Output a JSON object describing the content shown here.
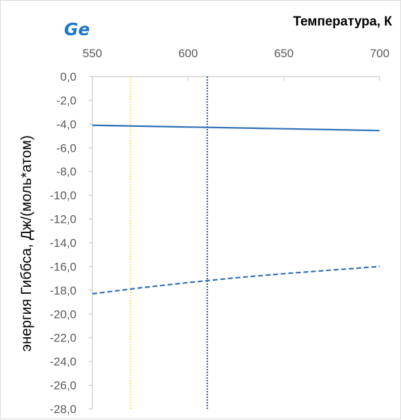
{
  "chart_data": {
    "type": "line",
    "title": "Ge",
    "xlabel": "Температура, К",
    "ylabel": "энергия Гиббса, Дж/(моль*атом)",
    "xlim": [
      550,
      700
    ],
    "ylim": [
      -28,
      0
    ],
    "x_ticks": [
      550,
      600,
      650,
      700
    ],
    "x_tick_labels": [
      "550",
      "600",
      "650",
      "700"
    ],
    "y_ticks": [
      0,
      -2,
      -4,
      -6,
      -8,
      -10,
      -12,
      -14,
      -16,
      -18,
      -20,
      -22,
      -24,
      -26,
      -28
    ],
    "y_tick_labels": [
      "0,0",
      "-2,0",
      "-4,0",
      "-6,0",
      "-8,0",
      "-10,0",
      "-12,0",
      "-14,0",
      "-16,0",
      "-18,0",
      "-20,0",
      "-22,0",
      "-24,0",
      "-26,0",
      "-28,0"
    ],
    "x_axis_position": "top",
    "grid": false,
    "series": [
      {
        "style": "solid",
        "x": [
          550,
          600,
          650,
          700
        ],
        "y": [
          -4.1,
          -4.25,
          -4.4,
          -4.55
        ]
      },
      {
        "style": "dashed",
        "x": [
          550,
          575,
          600,
          625,
          650,
          675,
          700
        ],
        "y": [
          -18.3,
          -17.8,
          -17.35,
          -16.95,
          -16.6,
          -16.3,
          -16.0
        ]
      }
    ],
    "vlines": [
      {
        "x": 570,
        "style": "dotted"
      },
      {
        "x": 610,
        "style": "dotted"
      }
    ],
    "colors": {
      "title": "#1f77c9",
      "series_line": "#2e6fb7",
      "vline_1": "#ffe14d",
      "vline_2": "#2c4f8f",
      "axis": "#bfbfbf",
      "tick_text": "#595959"
    }
  }
}
